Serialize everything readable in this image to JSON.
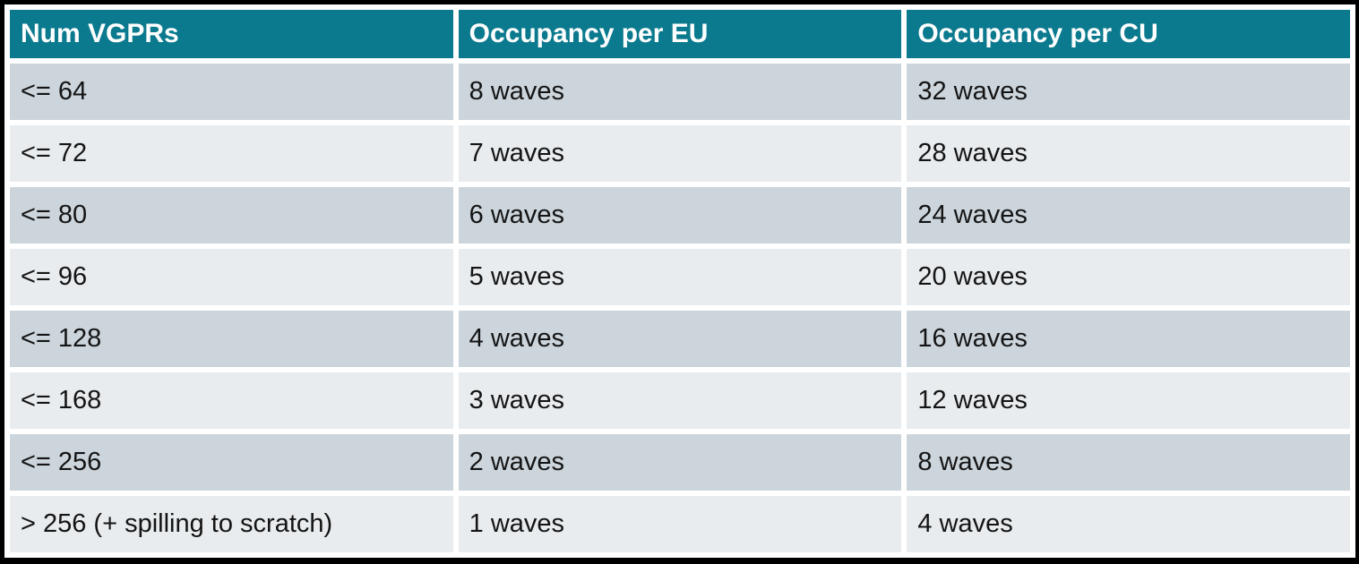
{
  "colors": {
    "page-border": "#000000",
    "separator": "#ffffff",
    "header-bg": "#0b7a8e",
    "header-text": "#ffffff",
    "row-dark": "#ccd5dc",
    "row-light": "#e8ecef",
    "body-text": "#141414"
  },
  "chart_data": {
    "type": "table",
    "columns": [
      "Num VGPRs",
      "Occupancy per EU",
      "Occupancy per CU"
    ],
    "rows": [
      [
        "<= 64",
        "8 waves",
        "32 waves"
      ],
      [
        "<= 72",
        "7 waves",
        "28 waves"
      ],
      [
        "<= 80",
        "6 waves",
        "24 waves"
      ],
      [
        "<= 96",
        "5 waves",
        "20 waves"
      ],
      [
        "<= 128",
        "4 waves",
        "16 waves"
      ],
      [
        "<= 168",
        "3 waves",
        "12 waves"
      ],
      [
        "<= 256",
        "2 waves",
        "8 waves"
      ],
      [
        "> 256 (+ spilling to scratch)",
        "1 waves",
        "4 waves"
      ]
    ],
    "layout_hints": {
      "header_style": "teal background, white bold text",
      "row_striping": "alternating blue-gray / light gray starting dark",
      "grid": "white 6px separators, black outer frame"
    }
  }
}
